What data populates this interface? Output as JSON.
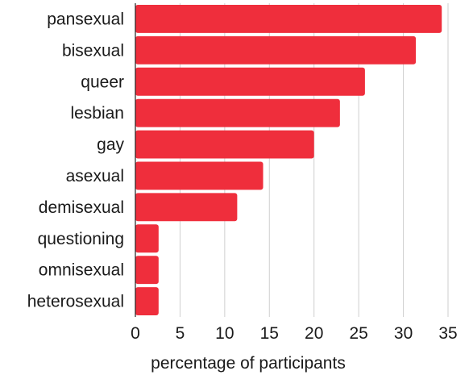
{
  "chart_data": {
    "type": "bar",
    "orientation": "horizontal",
    "categories": [
      "pansexual",
      "bisexual",
      "queer",
      "lesbian",
      "gay",
      "asexual",
      "demisexual",
      "questioning",
      "omnisexual",
      "heterosexual"
    ],
    "values": [
      34.3,
      31.4,
      25.7,
      22.9,
      20.0,
      14.3,
      11.4,
      2.6,
      2.6,
      2.6
    ],
    "xlabel": "percentage of participants",
    "ylabel": "",
    "title": "",
    "xlim": [
      0,
      35
    ],
    "xticks": [
      "0",
      "5",
      "10",
      "15",
      "20",
      "25",
      "30",
      "35"
    ],
    "grid": "vertical",
    "legend": "none",
    "bar_color": "#ef2e3c"
  }
}
